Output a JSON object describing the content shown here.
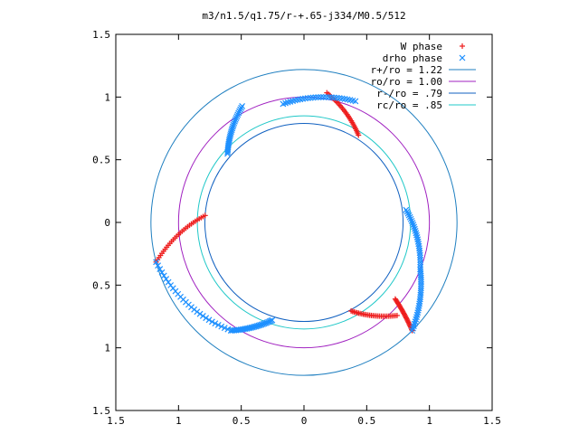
{
  "chart_data": {
    "type": "scatter",
    "title": "m3/n1.5/q1.75/r-+.65-j334/M0.5/512",
    "xlabel": "",
    "ylabel": "",
    "xlim": [
      -1.5,
      1.5
    ],
    "ylim": [
      -1.5,
      1.5
    ],
    "x_ticks": [
      -1.5,
      -1,
      -0.5,
      0,
      0.5,
      1,
      1.5
    ],
    "x_tick_labels": [
      "1.5",
      "1",
      "0.5",
      "0",
      "0.5",
      "1",
      "1.5"
    ],
    "y_ticks": [
      -1.5,
      -1,
      -0.5,
      0,
      0.5,
      1,
      1.5
    ],
    "y_tick_labels": [
      "1.5",
      "1",
      "0.5",
      "0",
      "0.5",
      "1",
      "1.5"
    ],
    "grid": false,
    "legend_position": "top-right",
    "circles": [
      {
        "name": "r+/ro = 1.22",
        "radius": 1.22,
        "color": "#1f7fc0"
      },
      {
        "name": "ro/ro = 1.00",
        "radius": 1.0,
        "color": "#a020c0"
      },
      {
        "name": "r-/ro = .79",
        "radius": 0.79,
        "color": "#1060c0"
      },
      {
        "name": "rc/ro = .85",
        "radius": 0.85,
        "color": "#20c8c8"
      }
    ],
    "series": [
      {
        "name": "W phase",
        "marker": "plus",
        "color": "#ee1c1c",
        "arms": [
          {
            "theta_start": 80,
            "theta_end": 58,
            "r_start": 1.05,
            "r_end": 0.82
          },
          {
            "theta_start": -40,
            "theta_end": -45,
            "r_start": 0.95,
            "r_end": 1.22
          },
          {
            "theta_start": 176,
            "theta_end": 195,
            "r_start": 0.79,
            "r_end": 1.22
          },
          {
            "theta_start": -62,
            "theta_end": -45,
            "r_start": 0.8,
            "r_end": 1.05
          }
        ]
      },
      {
        "name": "drho phase",
        "marker": "x",
        "color": "#1e90ff",
        "arms": [
          {
            "theta_start": 100,
            "theta_end": 67,
            "r_start": 0.96,
            "r_end": 1.05
          },
          {
            "theta_start": 138,
            "theta_end": 118,
            "r_start": 0.82,
            "r_end": 1.05
          },
          {
            "theta_start": 195,
            "theta_end": 236,
            "r_start": 1.22,
            "r_end": 1.04
          },
          {
            "theta_start": 236,
            "theta_end": 252,
            "r_start": 1.04,
            "r_end": 0.82
          },
          {
            "theta_start": 7,
            "theta_end": -22,
            "r_start": 0.82,
            "r_end": 1.0
          },
          {
            "theta_start": -22,
            "theta_end": -45,
            "r_start": 1.0,
            "r_end": 1.22
          }
        ]
      }
    ]
  }
}
